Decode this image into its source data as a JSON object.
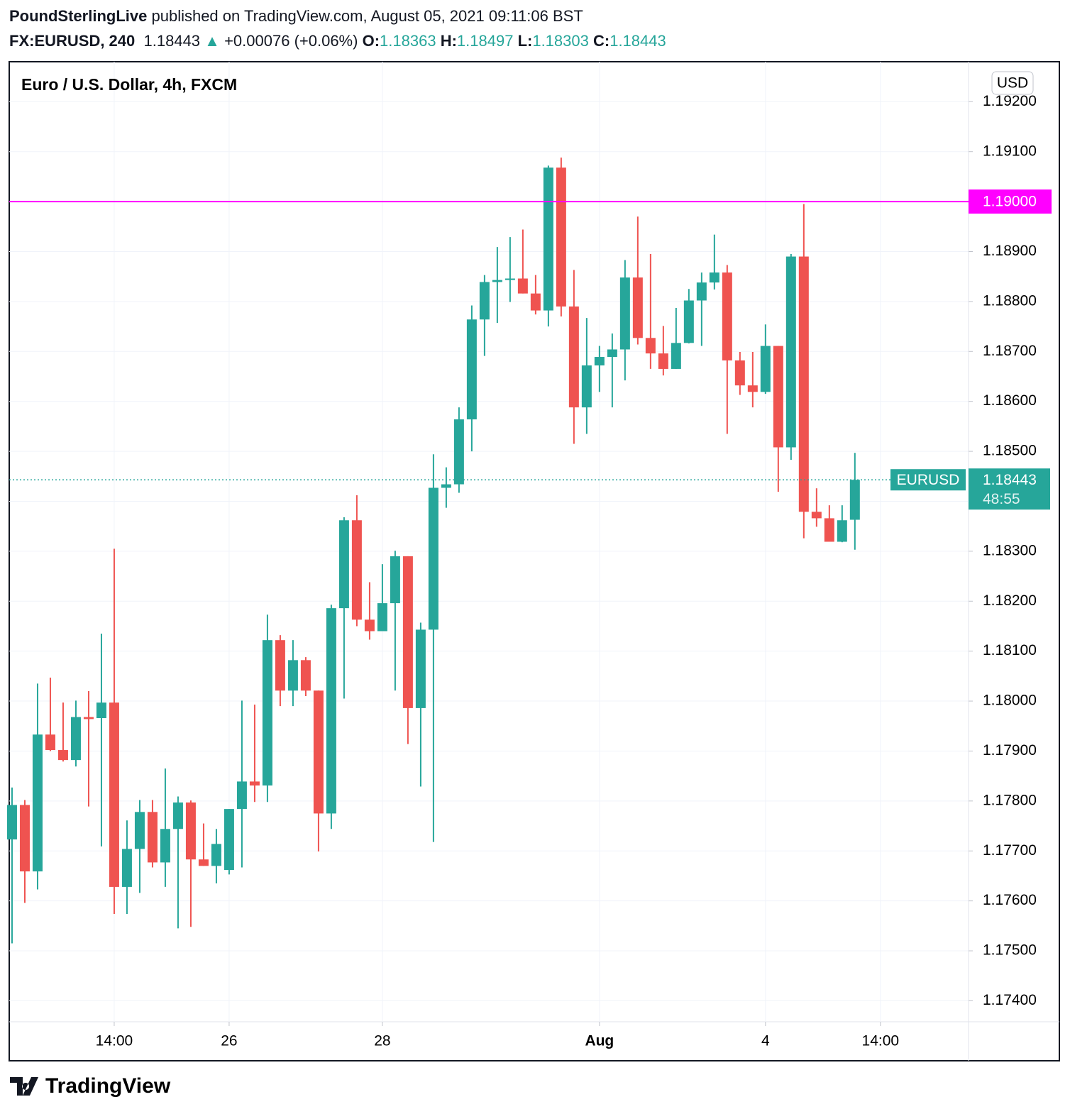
{
  "header": {
    "publisher": "PoundSterlingLive",
    "published": "published on TradingView.com, August 05, 2021 09:11:06 BST",
    "symbol": "FX:EURUSD, 240",
    "last": "1.18443",
    "arrow": "▲",
    "change": "+0.00076 (+0.06%)",
    "o_label": "O:",
    "o": "1.18363",
    "h_label": "H:",
    "h": "1.18497",
    "l_label": "L:",
    "l": "1.18303",
    "c_label": "C:",
    "c": "1.18443"
  },
  "chart_data": {
    "type": "candlestick",
    "title": "Euro / U.S. Dollar, 4h, FXCM",
    "currency": "USD",
    "open": [
      1.17723,
      1.17792,
      1.17659,
      1.17933,
      1.17902,
      1.17882,
      1.17968,
      1.17966,
      1.17997,
      1.17628,
      1.17704,
      1.17778,
      1.17677,
      1.17744,
      1.17797,
      1.17683,
      1.1767,
      1.17662,
      1.17784,
      1.17839,
      1.17831,
      1.18122,
      1.18021,
      1.18082,
      1.18021,
      1.17775,
      1.18186,
      1.18362,
      1.18163,
      1.1814,
      1.18196,
      1.1829,
      1.17986,
      1.18143,
      1.18427,
      1.18434,
      1.18564,
      1.18764,
      1.18839,
      1.18843,
      1.18846,
      1.18816,
      1.18782,
      1.19068,
      1.1879,
      1.18588,
      1.18672,
      1.18689,
      1.18704,
      1.18848,
      1.18727,
      1.18696,
      1.18665,
      1.18717,
      1.18802,
      1.18838,
      1.18858,
      1.18682,
      1.18632,
      1.18619,
      1.18711,
      1.18508,
      1.1889,
      1.18379,
      1.18366,
      1.18319,
      1.18363
    ],
    "high": [
      1.17827,
      1.17802,
      1.18035,
      1.18047,
      1.17997,
      1.18001,
      1.1802,
      1.18135,
      1.18305,
      1.17761,
      1.17802,
      1.17802,
      1.17865,
      1.17809,
      1.17801,
      1.17755,
      1.17744,
      1.17784,
      1.18001,
      1.17993,
      1.18173,
      1.18132,
      1.18122,
      1.18088,
      1.18021,
      1.18193,
      1.18368,
      1.18412,
      1.18238,
      1.18274,
      1.18301,
      1.1829,
      1.18157,
      1.18494,
      1.18468,
      1.18588,
      1.18792,
      1.18853,
      1.18909,
      1.18929,
      1.18944,
      1.18853,
      1.19072,
      1.19088,
      1.18863,
      1.18767,
      1.18711,
      1.18736,
      1.18883,
      1.1897,
      1.18895,
      1.18751,
      1.18787,
      1.18825,
      1.18858,
      1.18934,
      1.18873,
      1.18699,
      1.18699,
      1.18754,
      1.18711,
      1.18895,
      1.18995,
      1.18426,
      1.18392,
      1.18392,
      1.18497
    ],
    "low": [
      1.17515,
      1.17596,
      1.17623,
      1.179,
      1.17879,
      1.17869,
      1.17789,
      1.17709,
      1.17574,
      1.17574,
      1.17616,
      1.17667,
      1.17628,
      1.17545,
      1.17548,
      1.1767,
      1.17635,
      1.17653,
      1.17667,
      1.17798,
      1.17798,
      1.1799,
      1.1799,
      1.1801,
      1.17699,
      1.17744,
      1.18005,
      1.1815,
      1.18123,
      1.1814,
      1.18021,
      1.17914,
      1.17829,
      1.17718,
      1.18387,
      1.18417,
      1.185,
      1.18691,
      1.18757,
      1.18799,
      1.18816,
      1.18774,
      1.1875,
      1.1877,
      1.18515,
      1.18535,
      1.18619,
      1.18588,
      1.18642,
      1.18714,
      1.18665,
      1.18652,
      1.18665,
      1.18716,
      1.18711,
      1.18824,
      1.18535,
      1.18613,
      1.18588,
      1.18615,
      1.18419,
      1.18483,
      1.18326,
      1.18349,
      1.18319,
      1.18318,
      1.18303
    ],
    "close": [
      1.17792,
      1.17659,
      1.17933,
      1.17902,
      1.17882,
      1.17968,
      1.17964,
      1.17997,
      1.17628,
      1.17704,
      1.17778,
      1.17677,
      1.17744,
      1.17797,
      1.17683,
      1.1767,
      1.17714,
      1.17784,
      1.17839,
      1.17831,
      1.18122,
      1.18021,
      1.18082,
      1.18021,
      1.17775,
      1.18186,
      1.18362,
      1.18163,
      1.1814,
      1.18196,
      1.1829,
      1.17986,
      1.18143,
      1.18427,
      1.18434,
      1.18564,
      1.18764,
      1.18839,
      1.18843,
      1.18846,
      1.18816,
      1.18782,
      1.19068,
      1.1879,
      1.18588,
      1.18672,
      1.18689,
      1.18704,
      1.18848,
      1.18727,
      1.18696,
      1.18665,
      1.18717,
      1.18802,
      1.18838,
      1.18858,
      1.18682,
      1.18632,
      1.18619,
      1.18711,
      1.18508,
      1.1889,
      1.18379,
      1.18366,
      1.18319,
      1.18362,
      1.18443
    ],
    "up_color": "#26a69a",
    "down_color": "#ef5350",
    "xlim": [
      -0.22,
      74.9
    ],
    "xticks": [
      {
        "value": 8,
        "label": "14:00"
      },
      {
        "value": 17,
        "label": "26"
      },
      {
        "value": 29,
        "label": "28"
      },
      {
        "value": 46,
        "label": "Aug"
      },
      {
        "value": 59,
        "label": "4"
      },
      {
        "value": 68,
        "label": "14:00"
      }
    ],
    "ylim": [
      1.17358,
      1.1928
    ],
    "yticks": [
      {
        "value": 1.174,
        "label": "1.17400"
      },
      {
        "value": 1.175,
        "label": "1.17500"
      },
      {
        "value": 1.176,
        "label": "1.17600"
      },
      {
        "value": 1.177,
        "label": "1.17700"
      },
      {
        "value": 1.178,
        "label": "1.17800"
      },
      {
        "value": 1.179,
        "label": "1.17900"
      },
      {
        "value": 1.18,
        "label": "1.18000"
      },
      {
        "value": 1.181,
        "label": "1.18100"
      },
      {
        "value": 1.182,
        "label": "1.18200"
      },
      {
        "value": 1.183,
        "label": "1.18300"
      },
      {
        "value": 1.184,
        "label": "1.18400"
      },
      {
        "value": 1.185,
        "label": "1.18500"
      },
      {
        "value": 1.186,
        "label": "1.18600"
      },
      {
        "value": 1.187,
        "label": "1.18700"
      },
      {
        "value": 1.188,
        "label": "1.18800"
      },
      {
        "value": 1.189,
        "label": "1.18900"
      },
      {
        "value": 1.19,
        "label": "1.19000"
      },
      {
        "value": 1.191,
        "label": "1.19100"
      },
      {
        "value": 1.192,
        "label": "1.19200"
      }
    ],
    "grid": true,
    "hline": {
      "value": 1.19,
      "label": "1.19000",
      "color": "#ff00ff"
    },
    "last_price": {
      "name": "EURUSD",
      "value": 1.18443,
      "label": "1.18443",
      "countdown": "48:55",
      "color": "#26a69a"
    }
  },
  "footer": {
    "brand": "TradingView"
  }
}
